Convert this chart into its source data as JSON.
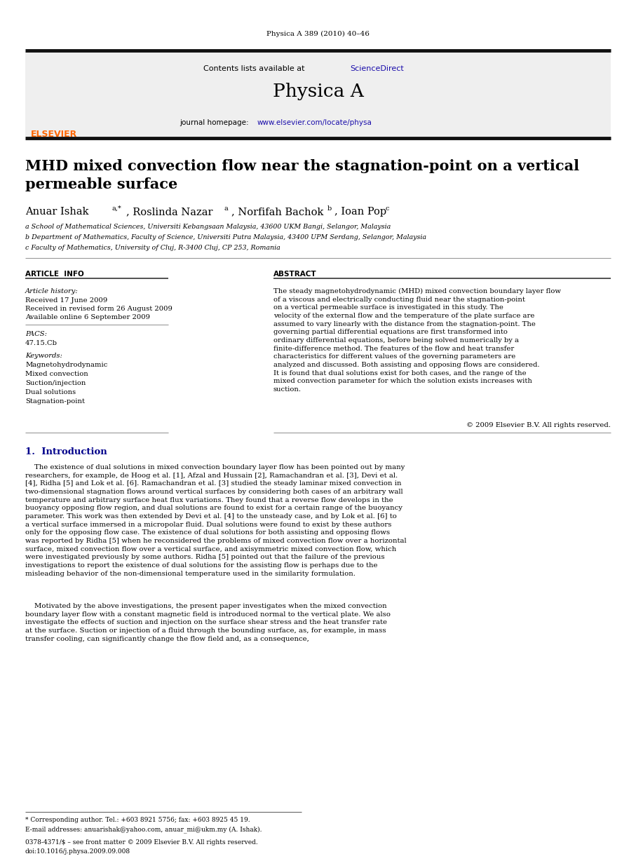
{
  "page_width": 9.07,
  "page_height": 12.38,
  "bg_color": "#ffffff",
  "top_journal_ref": "Physica A 389 (2010) 40–46",
  "journal_name": "Physica A",
  "contents_text": "Contents lists available at ScienceDirect",
  "sciencedirect_color": "#0000cc",
  "homepage_prefix": "journal homepage: ",
  "homepage_url": "www.elsevier.com/locate/physa",
  "homepage_color": "#0000cc",
  "header_bg": "#efefef",
  "title_line1": "MHD mixed convection flow near the stagnation-point on a vertical",
  "title_line2": "permeable surface",
  "author_main": "Anuar Ishak",
  "author_super1": "a,*",
  "author2": ", Roslinda Nazar",
  "author_super2": "a",
  "author3": ", Norfifah Bachok",
  "author_super3": "b",
  "author4": ", Ioan Pop",
  "author_super4": "c",
  "affil_a": "a School of Mathematical Sciences, Universiti Kebangsaan Malaysia, 43600 UKM Bangi, Selangor, Malaysia",
  "affil_b": "b Department of Mathematics, Faculty of Science, Universiti Putra Malaysia, 43400 UPM Serdang, Selangor, Malaysia",
  "affil_c": "c Faculty of Mathematics, University of Cluj, R-3400 Cluj, CP 253, Romania",
  "article_info_header": "ARTICLE  INFO",
  "abstract_header": "ABSTRACT",
  "article_history_label": "Article history:",
  "received_label": "Received 17 June 2009",
  "revised_label": "Received in revised form 26 August 2009",
  "available_label": "Available online 6 September 2009",
  "pacs_label": "PACS:",
  "pacs_values": "47.15.Cb",
  "keywords_label": "Keywords:",
  "keywords": [
    "Magnetohydrodynamic",
    "Mixed convection",
    "Suction/injection",
    "Dual solutions",
    "Stagnation-point"
  ],
  "abstract_text": "The steady magnetohydrodynamic (MHD) mixed convection boundary layer flow of a viscous and electrically conducting fluid near the stagnation-point on a vertical permeable surface is investigated in this study. The velocity of the external flow and the temperature of the plate surface are assumed to vary linearly with the distance from the stagnation-point. The governing partial differential equations are first transformed into ordinary differential equations, before being solved numerically by a finite-difference method. The features of the flow and heat transfer characteristics for different values of the governing parameters are analyzed and discussed. Both assisting and opposing flows are considered. It is found that dual solutions exist for both cases, and the range of the mixed convection parameter for which the solution exists increases with suction.",
  "copyright": "© 2009 Elsevier B.V. All rights reserved.",
  "section1_title": "1.  Introduction",
  "intro_para1": "    The existence of dual solutions in mixed convection boundary layer flow has been pointed out by many researchers, for example, de Hoog et al. [1], Afzal and Hussain [2], Ramachandran et al. [3], Devi et al. [4], Ridha [5] and Lok et al. [6]. Ramachandran et al. [3] studied the steady laminar mixed convection in two-dimensional stagnation flows around vertical surfaces by considering both cases of an arbitrary wall temperature and arbitrary surface heat flux variations. They found that a reverse flow develops in the buoyancy opposing flow region, and dual solutions are found to exist for a certain range of the buoyancy parameter. This work was then extended by Devi et al. [4] to the unsteady case, and by Lok et al. [6] to a vertical surface immersed in a micropolar fluid. Dual solutions were found to exist by these authors only for the opposing flow case. The existence of dual solutions for both assisting and opposing flows was reported by Ridha [5] when he reconsidered the problems of mixed convection flow over a horizontal surface, mixed convection flow over a vertical surface, and axisymmetric mixed convection flow, which were investigated previously by some authors. Ridha [5] pointed out that the failure of the previous investigations to report the existence of dual solutions for the assisting flow is perhaps due to the misleading behavior of the non-dimensional temperature used in the similarity formulation.",
  "intro_para2": "    Motivated by the above investigations, the present paper investigates when the mixed convection boundary layer flow with a constant magnetic field is introduced normal to the vertical plate. We also investigate the effects of suction and injection on the surface shear stress and the heat transfer rate at the surface. Suction or injection of a fluid through the bounding surface, as, for example, in mass transfer cooling, can significantly change the flow field and, as a consequence,",
  "footer_star": "* Corresponding author. Tel.: +603 8921 5756; fax: +603 8925 45 19.",
  "footer_email": "E-mail addresses: anuarishak@yahoo.com, anuar_mi@ukm.my (A. Ishak).",
  "footer_copy": "0378-4371/$ – see front matter © 2009 Elsevier B.V. All rights reserved.",
  "footer_doi": "doi:10.1016/j.physa.2009.09.008",
  "elsevier_color": "#FF6600",
  "divider_color": "#111111",
  "link_color": "#1a0dab",
  "intro_color": "#00008B"
}
